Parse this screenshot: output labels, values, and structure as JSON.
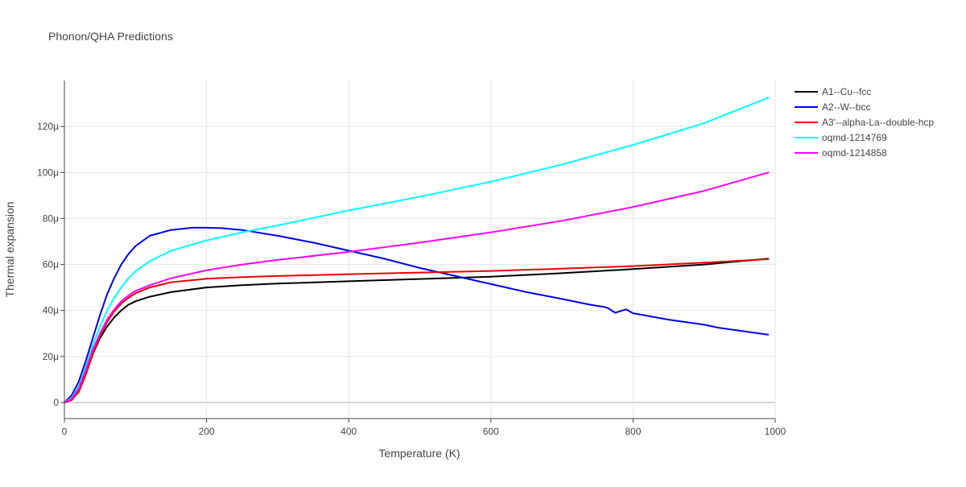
{
  "chart_data": {
    "type": "line",
    "title": "Phonon/QHA Predictions",
    "xlabel": "Temperature (K)",
    "ylabel": "Thermal expansion",
    "xlim": [
      0,
      1000
    ],
    "ylim": [
      -7,
      140
    ],
    "x_ticks": [
      {
        "value": 0,
        "label": "0"
      },
      {
        "value": 200,
        "label": "200"
      },
      {
        "value": 400,
        "label": "400"
      },
      {
        "value": 600,
        "label": "600"
      },
      {
        "value": 800,
        "label": "800"
      },
      {
        "value": 1000,
        "label": "1000"
      }
    ],
    "y_ticks": [
      {
        "value": 0,
        "label": "0"
      },
      {
        "value": 20,
        "label": "20μ"
      },
      {
        "value": 40,
        "label": "40μ"
      },
      {
        "value": 60,
        "label": "60μ"
      },
      {
        "value": 80,
        "label": "80μ"
      },
      {
        "value": 100,
        "label": "100μ"
      },
      {
        "value": 120,
        "label": "120μ"
      }
    ],
    "y_unit_note": "values in units of 1e-6 (μ)",
    "grid": true,
    "legend_position": "top-right, outside plot",
    "series": [
      {
        "name": "A1--Cu--fcc",
        "color": "#000000",
        "points": [
          [
            0,
            0
          ],
          [
            10,
            1
          ],
          [
            20,
            5
          ],
          [
            30,
            13
          ],
          [
            40,
            21
          ],
          [
            50,
            28
          ],
          [
            60,
            33
          ],
          [
            70,
            37
          ],
          [
            80,
            40
          ],
          [
            90,
            42.5
          ],
          [
            100,
            44
          ],
          [
            120,
            46
          ],
          [
            150,
            48
          ],
          [
            200,
            50
          ],
          [
            250,
            51
          ],
          [
            300,
            51.7
          ],
          [
            400,
            52.7
          ],
          [
            500,
            53.7
          ],
          [
            600,
            54.7
          ],
          [
            700,
            56.2
          ],
          [
            800,
            58
          ],
          [
            900,
            60
          ],
          [
            990,
            62.5
          ]
        ]
      },
      {
        "name": "A2--W--bcc",
        "color": "#0000ee",
        "points": [
          [
            0,
            0
          ],
          [
            10,
            3
          ],
          [
            20,
            9
          ],
          [
            30,
            18
          ],
          [
            40,
            28
          ],
          [
            50,
            38
          ],
          [
            60,
            47
          ],
          [
            70,
            54
          ],
          [
            80,
            60
          ],
          [
            90,
            64.5
          ],
          [
            100,
            68
          ],
          [
            120,
            72.5
          ],
          [
            150,
            75
          ],
          [
            180,
            76
          ],
          [
            200,
            76
          ],
          [
            220,
            75.8
          ],
          [
            250,
            75
          ],
          [
            300,
            72.5
          ],
          [
            350,
            69.5
          ],
          [
            400,
            66
          ],
          [
            450,
            62.5
          ],
          [
            500,
            58.5
          ],
          [
            550,
            55
          ],
          [
            600,
            51.5
          ],
          [
            650,
            48
          ],
          [
            700,
            45
          ],
          [
            740,
            42.5
          ],
          [
            760,
            41.5
          ],
          [
            765,
            41
          ],
          [
            775,
            39
          ],
          [
            790,
            40.5
          ],
          [
            800,
            38.8
          ],
          [
            850,
            36
          ],
          [
            900,
            33.8
          ],
          [
            920,
            32.5
          ],
          [
            990,
            29.5
          ]
        ]
      },
      {
        "name": "A3'--alpha-La--double-hcp",
        "color": "#ee0000",
        "points": [
          [
            0,
            0
          ],
          [
            10,
            1
          ],
          [
            20,
            4.5
          ],
          [
            30,
            12
          ],
          [
            40,
            21
          ],
          [
            50,
            29
          ],
          [
            60,
            35
          ],
          [
            70,
            39.5
          ],
          [
            80,
            43
          ],
          [
            90,
            45.5
          ],
          [
            100,
            47.5
          ],
          [
            120,
            50
          ],
          [
            150,
            52.3
          ],
          [
            200,
            53.8
          ],
          [
            250,
            54.5
          ],
          [
            300,
            55
          ],
          [
            400,
            55.8
          ],
          [
            500,
            56.5
          ],
          [
            600,
            57.2
          ],
          [
            700,
            58.2
          ],
          [
            800,
            59.3
          ],
          [
            900,
            60.8
          ],
          [
            990,
            62.3
          ]
        ]
      },
      {
        "name": "oqmd-1214769",
        "color": "#00ffff",
        "points": [
          [
            0,
            0
          ],
          [
            10,
            2
          ],
          [
            20,
            7
          ],
          [
            30,
            15.5
          ],
          [
            40,
            25
          ],
          [
            50,
            33
          ],
          [
            60,
            40
          ],
          [
            70,
            45.5
          ],
          [
            80,
            50
          ],
          [
            90,
            54
          ],
          [
            100,
            57
          ],
          [
            120,
            61.5
          ],
          [
            150,
            66
          ],
          [
            200,
            70.5
          ],
          [
            250,
            74
          ],
          [
            300,
            77
          ],
          [
            400,
            83.5
          ],
          [
            500,
            89.5
          ],
          [
            600,
            96
          ],
          [
            700,
            103.5
          ],
          [
            800,
            112
          ],
          [
            900,
            121.5
          ],
          [
            990,
            132.5
          ]
        ]
      },
      {
        "name": "oqmd-1214858",
        "color": "#ff00ff",
        "points": [
          [
            0,
            0
          ],
          [
            10,
            1.5
          ],
          [
            20,
            6
          ],
          [
            30,
            14
          ],
          [
            40,
            23
          ],
          [
            50,
            30
          ],
          [
            60,
            36
          ],
          [
            70,
            40.5
          ],
          [
            80,
            44
          ],
          [
            90,
            46.5
          ],
          [
            100,
            48.5
          ],
          [
            120,
            51
          ],
          [
            150,
            54
          ],
          [
            200,
            57.5
          ],
          [
            250,
            60
          ],
          [
            300,
            62
          ],
          [
            400,
            65.5
          ],
          [
            500,
            69.5
          ],
          [
            600,
            74
          ],
          [
            700,
            79
          ],
          [
            800,
            85
          ],
          [
            900,
            92
          ],
          [
            990,
            100
          ]
        ]
      }
    ]
  }
}
